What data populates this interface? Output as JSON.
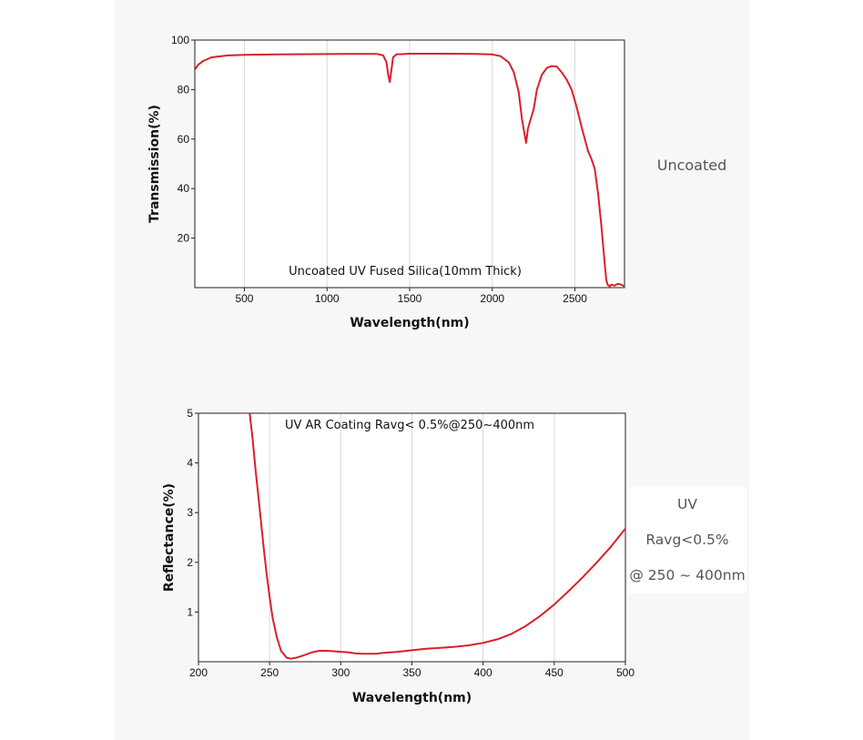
{
  "chart_data": [
    {
      "type": "line",
      "title": "",
      "annotation": "Uncoated UV Fused Silica(10mm Thick)",
      "xlabel": "Wavelength(nm)",
      "ylabel": "Transmission(%)",
      "xlim": [
        200,
        2800
      ],
      "ylim": [
        0,
        100
      ],
      "x_ticks": [
        500,
        1000,
        1500,
        2000,
        2500
      ],
      "y_ticks": [
        20,
        40,
        60,
        80,
        100
      ],
      "grid": "vertical",
      "line_color": "#d9202a",
      "series": [
        {
          "x": [
            200,
            220,
            250,
            300,
            400,
            500,
            700,
            900,
            1100,
            1300,
            1340,
            1360,
            1370,
            1380,
            1390,
            1400,
            1420,
            1500,
            1700,
            1900,
            2000,
            2050,
            2100,
            2130,
            2160,
            2180,
            2195,
            2205,
            2215,
            2230,
            2250,
            2270,
            2300,
            2330,
            2360,
            2390,
            2420,
            2450,
            2480,
            2510,
            2540,
            2560,
            2580,
            2600,
            2620,
            2640,
            2660,
            2680,
            2690,
            2700,
            2710,
            2720,
            2740,
            2760,
            2780,
            2800
          ],
          "y": [
            88,
            90,
            91.5,
            93,
            93.8,
            94,
            94.2,
            94.3,
            94.4,
            94.4,
            93.8,
            91,
            86,
            83,
            88,
            93,
            94.2,
            94.5,
            94.5,
            94.4,
            94.2,
            93.5,
            91,
            87,
            79,
            68,
            62,
            58.5,
            64,
            67.5,
            72,
            80,
            86,
            88.7,
            89.5,
            89.3,
            87,
            84,
            80,
            73,
            65,
            60,
            55,
            52,
            48,
            38,
            25,
            10,
            3,
            1,
            0.5,
            1.2,
            0.8,
            1.5,
            1.2,
            0.5
          ]
        }
      ]
    },
    {
      "type": "line",
      "title": "",
      "annotation": "UV AR Coating Ravg< 0.5%@250~400nm",
      "xlabel": "Wavelength(nm)",
      "ylabel": "Reflectance(%)",
      "xlim": [
        200,
        500
      ],
      "ylim": [
        0,
        5
      ],
      "x_ticks": [
        200,
        250,
        300,
        350,
        400,
        450,
        500
      ],
      "y_ticks": [
        1,
        2,
        3,
        4,
        5
      ],
      "grid": "vertical",
      "line_color": "#d9202a",
      "series": [
        {
          "x": [
            236,
            238,
            240,
            242,
            244,
            246,
            248,
            250,
            252,
            255,
            258,
            262,
            265,
            270,
            275,
            280,
            285,
            290,
            295,
            300,
            305,
            310,
            315,
            320,
            325,
            330,
            340,
            350,
            360,
            370,
            380,
            390,
            400,
            410,
            420,
            430,
            440,
            450,
            460,
            470,
            480,
            490,
            500
          ],
          "y": [
            5,
            4.5,
            3.9,
            3.35,
            2.8,
            2.25,
            1.75,
            1.3,
            0.9,
            0.5,
            0.22,
            0.08,
            0.06,
            0.09,
            0.14,
            0.19,
            0.22,
            0.22,
            0.21,
            0.2,
            0.19,
            0.17,
            0.16,
            0.16,
            0.16,
            0.18,
            0.2,
            0.23,
            0.26,
            0.28,
            0.3,
            0.33,
            0.38,
            0.45,
            0.56,
            0.72,
            0.92,
            1.15,
            1.42,
            1.7,
            2.0,
            2.32,
            2.68
          ]
        }
      ]
    }
  ],
  "side_labels": {
    "uncoated": "Uncoated",
    "uv_line1": "UV",
    "uv_line2": "Ravg<0.5%",
    "uv_line3": "@ 250 ~ 400nm"
  }
}
